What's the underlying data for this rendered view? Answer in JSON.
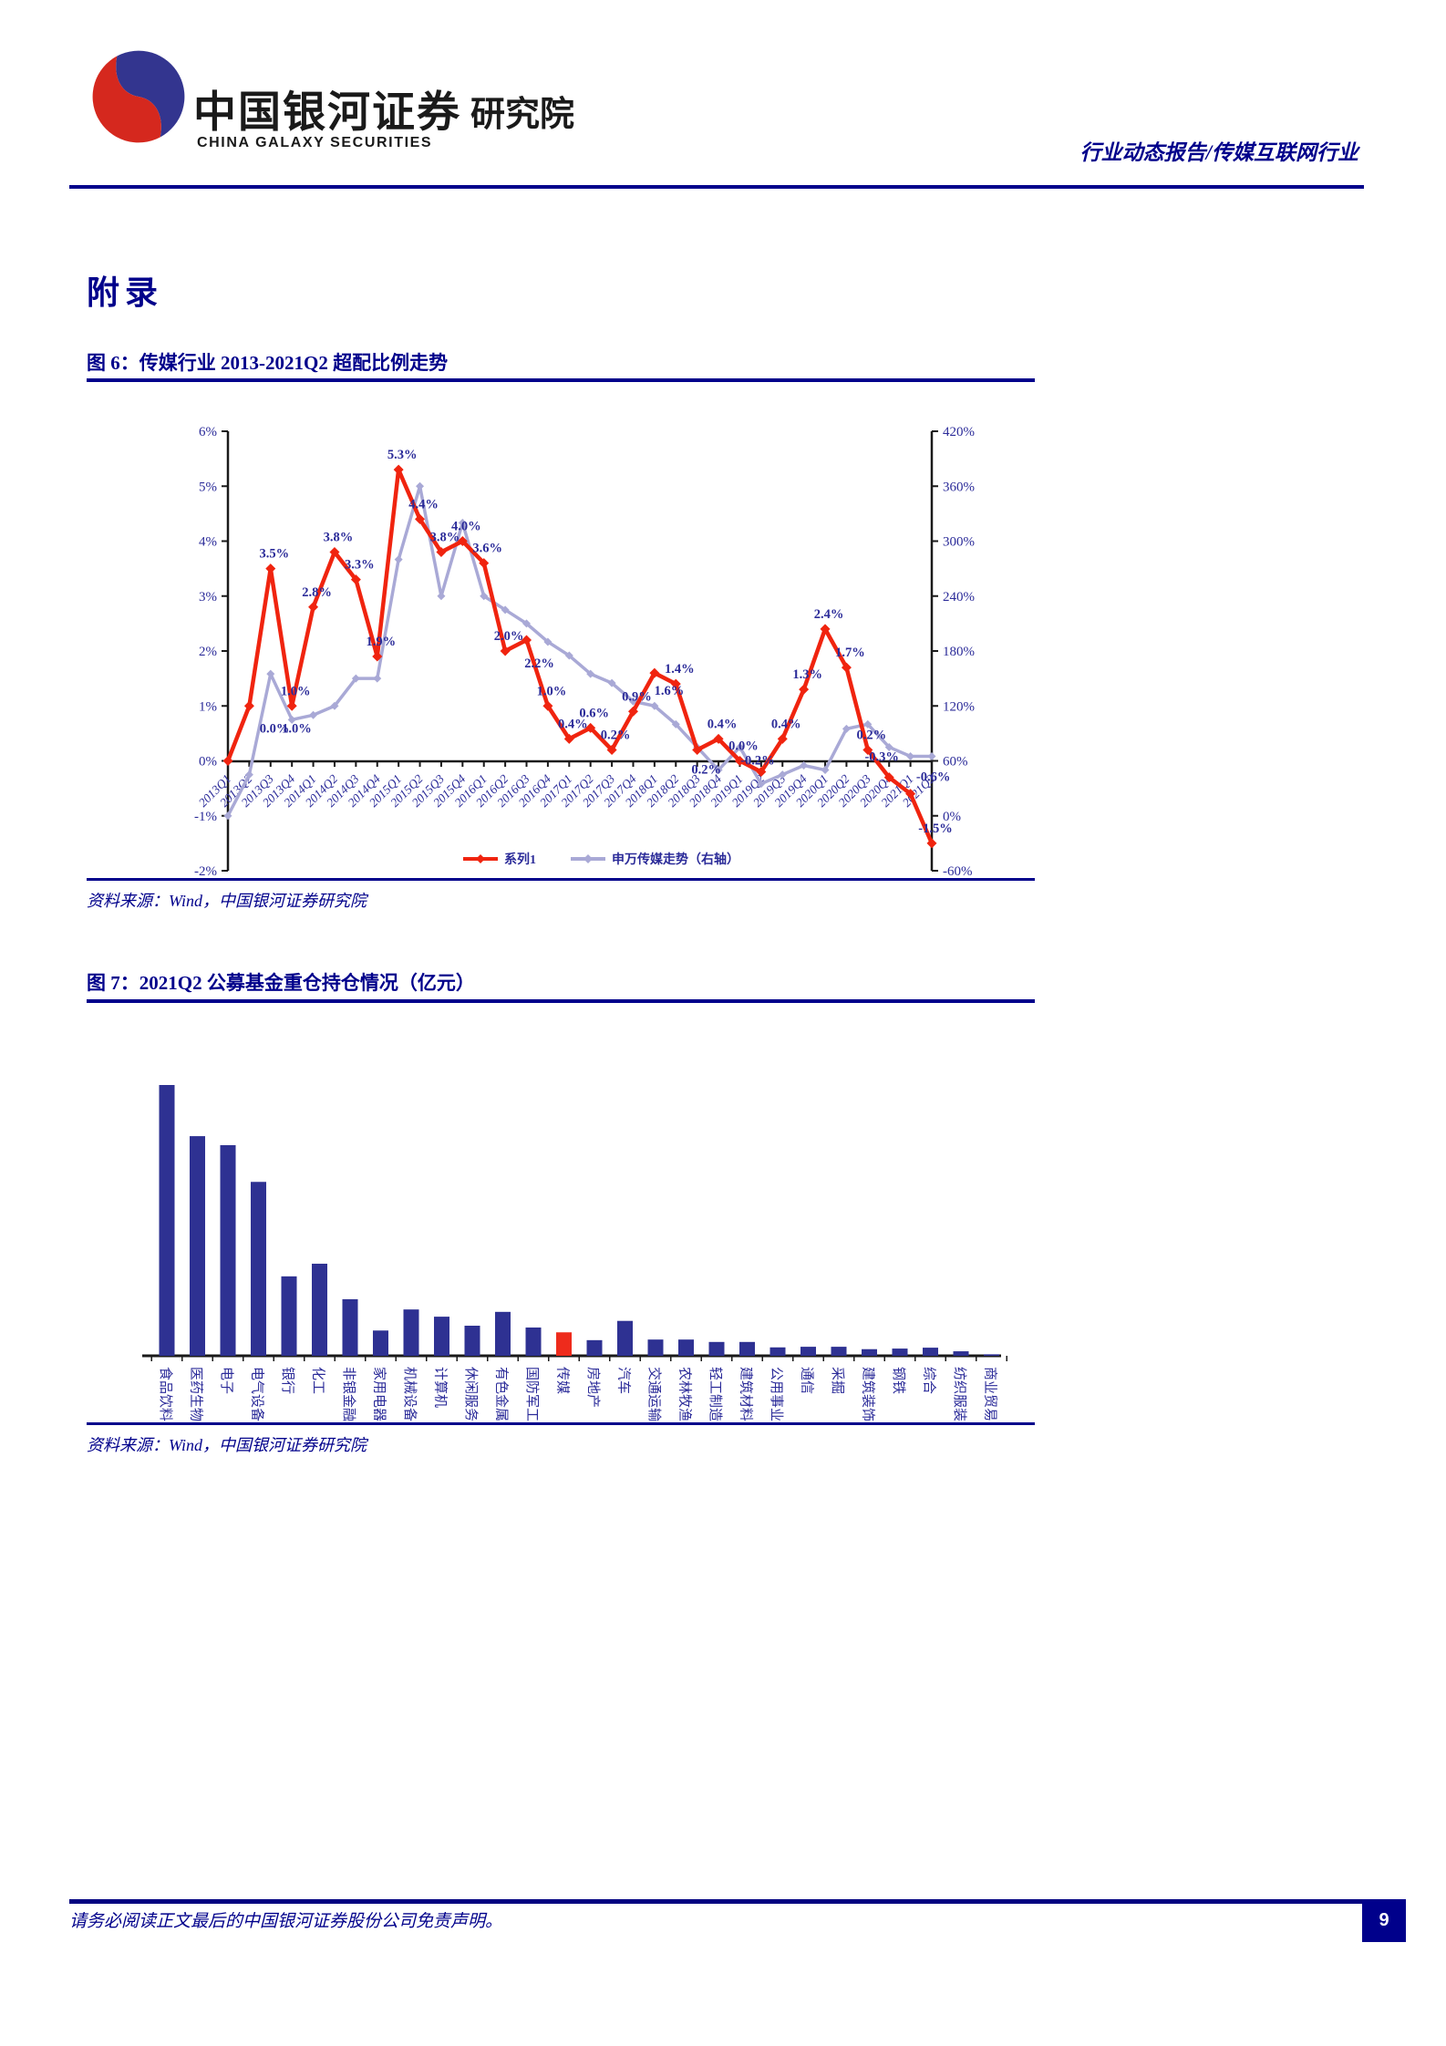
{
  "header": {
    "logo": {
      "title": "中国银河证券",
      "subtitle": "研究院",
      "caption": "CHINA GALAXY SECURITIES"
    },
    "report_type": "行业动态报告/传媒互联网行业"
  },
  "page": {
    "section_title": "附录"
  },
  "figure6": {
    "title": "图 6：传媒行业 2013-2021Q2 超配比例走势",
    "source": "资料来源：Wind，中国银河证券研究院",
    "legend": [
      {
        "label": "系列1",
        "color": "#f0240f"
      },
      {
        "label": "申万传媒走势（右轴）",
        "color": "#a9a9d6"
      }
    ]
  },
  "figure7": {
    "title": "图 7：2021Q2 公募基金重仓持仓情况（亿元）",
    "source": "资料来源：Wind，中国银河证券研究院"
  },
  "footer": {
    "disclaimer": "请务必阅读正文最后的中国银河证券股份公司免责声明。",
    "page_number": "9"
  },
  "chart_data": [
    {
      "type": "line",
      "title": "传媒行业2013-2021Q2超配比例走势",
      "categories": [
        "2013Q1",
        "2013Q2",
        "2013Q3",
        "2013Q4",
        "2014Q1",
        "2014Q2",
        "2014Q3",
        "2014Q4",
        "2015Q1",
        "2015Q2",
        "2015Q3",
        "2015Q4",
        "2016Q1",
        "2016Q2",
        "2016Q3",
        "2016Q4",
        "2017Q1",
        "2017Q2",
        "2017Q3",
        "2017Q4",
        "2018Q1",
        "2018Q2",
        "2018Q3",
        "2018Q4",
        "2019Q1",
        "2019Q2",
        "2019Q3",
        "2019Q4",
        "2020Q1",
        "2020Q2",
        "2020Q3",
        "2020Q4",
        "2021Q1",
        "2021Q2"
      ],
      "series": [
        {
          "name": "系列1",
          "axis": "left",
          "color": "#f0240f",
          "values": [
            0.0,
            1.0,
            3.5,
            1.0,
            2.8,
            3.8,
            3.3,
            1.9,
            5.3,
            4.4,
            3.8,
            4.0,
            3.6,
            2.0,
            2.2,
            1.0,
            0.4,
            0.6,
            0.2,
            0.9,
            1.6,
            1.4,
            0.2,
            0.4,
            0.0,
            -0.2,
            0.4,
            1.3,
            2.4,
            1.7,
            0.2,
            -0.3,
            -0.6,
            -1.5
          ]
        },
        {
          "name": "申万传媒走势（右轴）",
          "axis": "right",
          "color": "#a9a9d6",
          "values": [
            0,
            45,
            155,
            105,
            110,
            120,
            150,
            150,
            280,
            360,
            240,
            320,
            240,
            225,
            210,
            190,
            175,
            155,
            145,
            125,
            120,
            100,
            75,
            50,
            75,
            35,
            45,
            55,
            50,
            95,
            100,
            75,
            65,
            65
          ]
        }
      ],
      "left_axis": {
        "ticks": [
          "6%",
          "5%",
          "4%",
          "3%",
          "2%",
          "1%",
          "0%",
          "-1%",
          "-2%"
        ],
        "range": [
          -2,
          6
        ]
      },
      "right_axis": {
        "ticks": [
          "420%",
          "360%",
          "300%",
          "240%",
          "180%",
          "120%",
          "60%",
          "0%",
          "-60%"
        ],
        "range": [
          -60,
          420
        ]
      },
      "grid": false,
      "legend_position": "bottom"
    },
    {
      "type": "bar",
      "title": "2021Q2公募基金重仓持仓情况（亿元）",
      "unit": "亿元",
      "categories": [
        "食品饮料",
        "医药生物",
        "电子",
        "电气设备",
        "银行",
        "化工",
        "非银金融",
        "家用电器",
        "机械设备",
        "计算机",
        "休闲服务",
        "有色金属",
        "国防军工",
        "传媒",
        "房地产",
        "汽车",
        "交通运输",
        "农林牧渔",
        "轻工制造",
        "建筑材料",
        "公用事业",
        "通信",
        "采掘",
        "建筑装饰",
        "钢铁",
        "综合",
        "纺织服装",
        "商业贸易"
      ],
      "values": [
        4500,
        3650,
        3500,
        2890,
        1320,
        1530,
        940,
        420,
        770,
        650,
        500,
        730,
        470,
        390,
        260,
        580,
        270,
        270,
        230,
        230,
        140,
        150,
        150,
        110,
        120,
        135,
        75,
        25
      ],
      "bar_color": "#2e3192",
      "highlight_category": "传媒",
      "highlight_color": "#ee2b1c",
      "ylim": [
        0,
        4700
      ],
      "grid": false
    }
  ]
}
